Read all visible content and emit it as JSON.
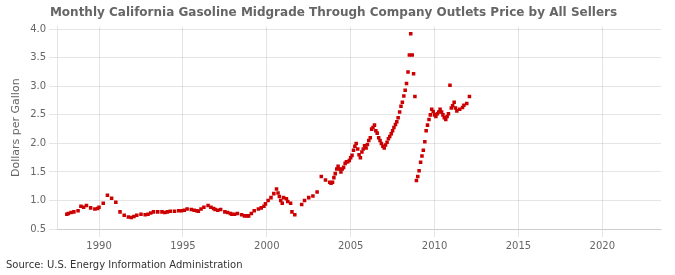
{
  "chart_data": {
    "type": "scatter",
    "title": "Monthly California Gasoline Midgrade Through Company Outlets Price by All Sellers",
    "ylabel": "Dollars per Gallon",
    "annotations": [
      "Source: U.S. Energy Information Administration"
    ],
    "color": "#CC0000",
    "marker": "square",
    "grid": true,
    "xlim": [
      1987.5,
      2023.5
    ],
    "ylim": [
      0.5,
      4.05
    ],
    "xticks": [
      1990,
      1995,
      2000,
      2005,
      2010,
      2015,
      2020
    ],
    "yticks": [
      0.5,
      {
        "value": 1.0,
        "label": "1.0"
      },
      1.5,
      {
        "value": 2.0,
        "label": "2.0"
      },
      2.5,
      {
        "value": 3.0,
        "label": "3.0"
      },
      3.5,
      {
        "value": 4.0,
        "label": "4.0"
      }
    ],
    "x": [
      1988.08,
      1988.17,
      1988.33,
      1988.5,
      1988.75,
      1988.92,
      1989.08,
      1989.25,
      1989.5,
      1989.75,
      1989.92,
      1990.0,
      1990.25,
      1990.5,
      1990.75,
      1991.0,
      1991.25,
      1991.5,
      1991.75,
      1991.92,
      1992.08,
      1992.25,
      1992.5,
      1992.75,
      1992.92,
      1993.08,
      1993.25,
      1993.5,
      1993.75,
      1993.92,
      1994.08,
      1994.25,
      1994.5,
      1994.75,
      1994.92,
      1995.08,
      1995.25,
      1995.5,
      1995.67,
      1995.83,
      1995.92,
      1996.08,
      1996.25,
      1996.5,
      1996.67,
      1996.83,
      1996.92,
      1997.08,
      1997.25,
      1997.5,
      1997.67,
      1997.83,
      1997.92,
      1998.08,
      1998.25,
      1998.5,
      1998.67,
      1998.83,
      1998.92,
      1999.08,
      1999.25,
      1999.5,
      1999.67,
      1999.83,
      1999.92,
      2000.08,
      2000.25,
      2000.42,
      2000.58,
      2000.67,
      2000.75,
      2000.83,
      2000.92,
      2001.0,
      2001.17,
      2001.25,
      2001.42,
      2001.5,
      2001.67,
      2002.08,
      2002.25,
      2002.5,
      2002.75,
      2003.0,
      2003.25,
      2003.5,
      2003.75,
      2003.83,
      2003.92,
      2004.0,
      2004.08,
      2004.17,
      2004.25,
      2004.33,
      2004.42,
      2004.5,
      2004.58,
      2004.67,
      2004.75,
      2004.83,
      2004.92,
      2005.0,
      2005.08,
      2005.17,
      2005.25,
      2005.33,
      2005.42,
      2005.5,
      2005.58,
      2005.67,
      2005.75,
      2005.83,
      2005.92,
      2006.0,
      2006.08,
      2006.17,
      2006.25,
      2006.33,
      2006.42,
      2006.5,
      2006.58,
      2006.67,
      2006.75,
      2006.83,
      2006.92,
      2007.0,
      2007.08,
      2007.17,
      2007.25,
      2007.33,
      2007.42,
      2007.5,
      2007.58,
      2007.67,
      2007.75,
      2007.83,
      2007.92,
      2008.0,
      2008.08,
      2008.17,
      2008.25,
      2008.33,
      2008.42,
      2008.5,
      2008.58,
      2008.67,
      2008.75,
      2008.83,
      2008.92,
      2009.0,
      2009.08,
      2009.17,
      2009.25,
      2009.33,
      2009.42,
      2009.5,
      2009.58,
      2009.67,
      2009.75,
      2009.83,
      2009.92,
      2010.0,
      2010.08,
      2010.17,
      2010.25,
      2010.33,
      2010.42,
      2010.5,
      2010.58,
      2010.67,
      2010.75,
      2010.83,
      2010.92,
      2011.0,
      2011.08,
      2011.17,
      2011.25,
      2011.33,
      2011.5,
      2011.67,
      2011.75,
      2011.92,
      2012.08
    ],
    "values": [
      0.76,
      0.77,
      0.79,
      0.8,
      0.82,
      0.9,
      0.88,
      0.91,
      0.87,
      0.85,
      0.86,
      0.88,
      0.95,
      1.09,
      1.04,
      0.97,
      0.8,
      0.74,
      0.71,
      0.7,
      0.72,
      0.74,
      0.76,
      0.75,
      0.76,
      0.78,
      0.8,
      0.8,
      0.8,
      0.79,
      0.8,
      0.81,
      0.81,
      0.82,
      0.82,
      0.83,
      0.85,
      0.84,
      0.83,
      0.82,
      0.81,
      0.85,
      0.88,
      0.91,
      0.88,
      0.86,
      0.84,
      0.83,
      0.84,
      0.8,
      0.79,
      0.77,
      0.76,
      0.76,
      0.77,
      0.75,
      0.73,
      0.73,
      0.73,
      0.77,
      0.82,
      0.85,
      0.87,
      0.9,
      0.94,
      1.0,
      1.05,
      1.12,
      1.2,
      1.13,
      1.07,
      1.0,
      0.95,
      1.05,
      1.03,
      0.98,
      0.95,
      0.8,
      0.75,
      0.93,
      1.0,
      1.05,
      1.08,
      1.15,
      1.42,
      1.36,
      1.32,
      1.3,
      1.32,
      1.4,
      1.47,
      1.55,
      1.6,
      1.55,
      1.5,
      1.55,
      1.58,
      1.65,
      1.68,
      1.68,
      1.7,
      1.75,
      1.79,
      1.88,
      1.95,
      2.0,
      1.9,
      1.8,
      1.75,
      1.85,
      1.9,
      1.96,
      1.92,
      1.98,
      2.05,
      2.1,
      2.25,
      2.28,
      2.32,
      2.22,
      2.18,
      2.1,
      2.05,
      2.0,
      1.95,
      1.92,
      1.97,
      2.02,
      2.08,
      2.12,
      2.17,
      2.22,
      2.28,
      2.33,
      2.38,
      2.45,
      2.55,
      2.65,
      2.72,
      2.83,
      2.93,
      3.05,
      3.25,
      3.55,
      3.92,
      3.55,
      3.22,
      2.82,
      1.35,
      1.42,
      1.52,
      1.67,
      1.78,
      1.88,
      2.03,
      2.22,
      2.32,
      2.42,
      2.5,
      2.6,
      2.56,
      2.5,
      2.47,
      2.52,
      2.55,
      2.6,
      2.55,
      2.5,
      2.45,
      2.42,
      2.47,
      2.52,
      3.02,
      2.62,
      2.66,
      2.72,
      2.62,
      2.57,
      2.6,
      2.63,
      2.67,
      2.7,
      2.82
    ]
  }
}
